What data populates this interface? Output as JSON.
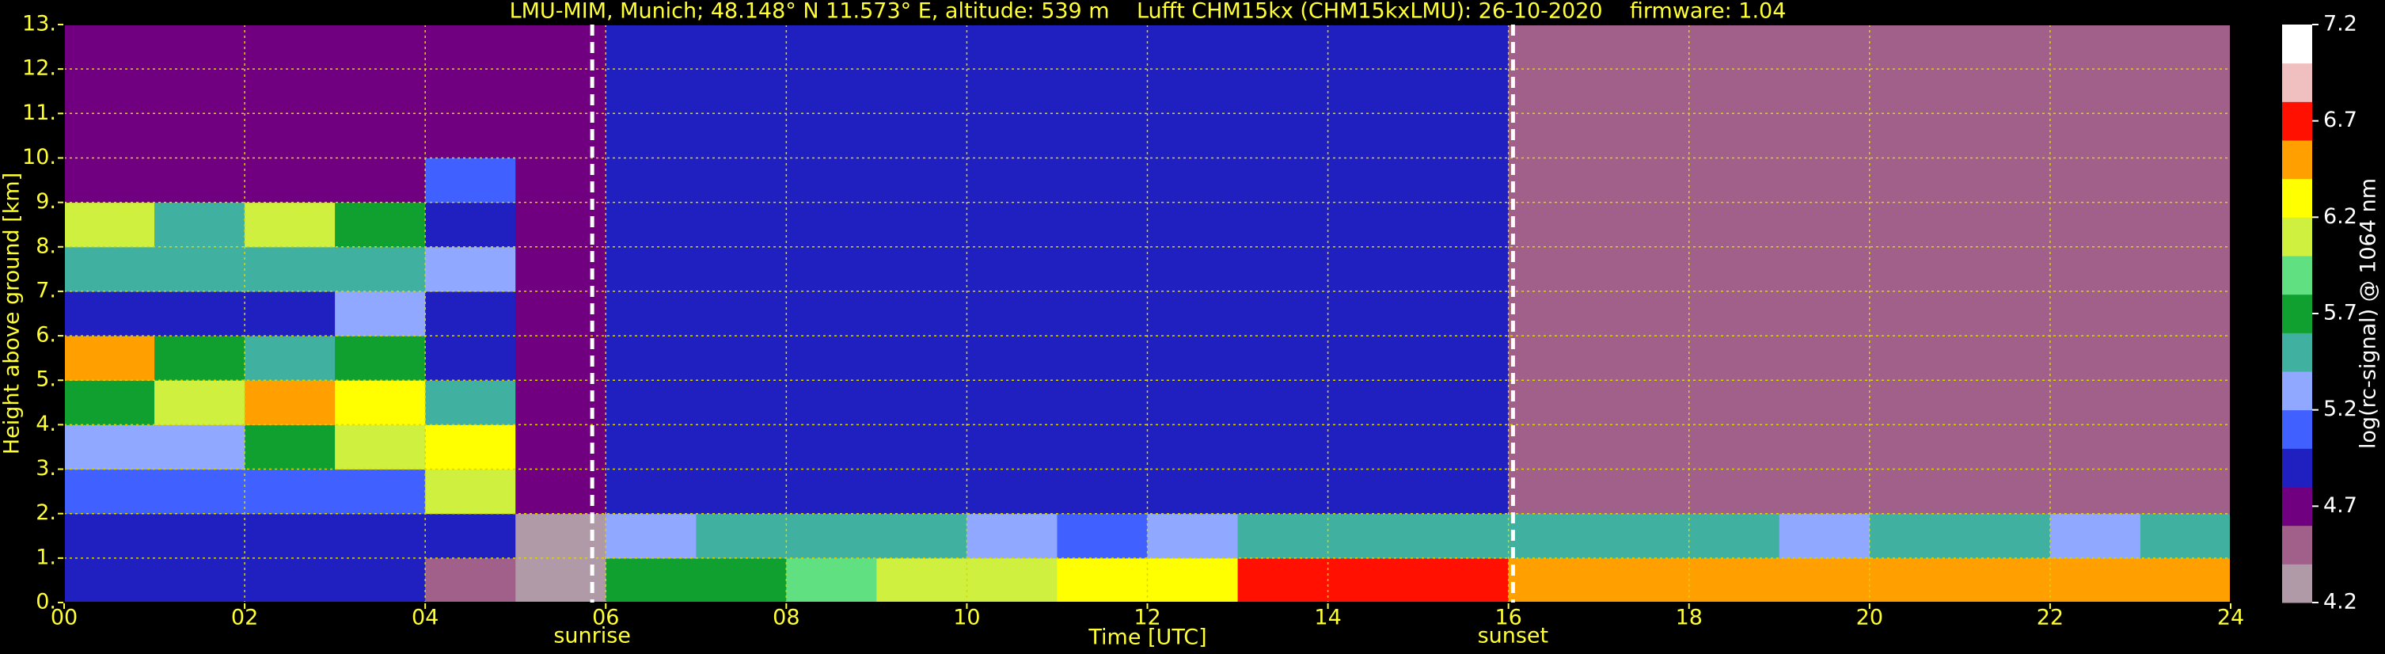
{
  "chart_data": {
    "type": "heatmap",
    "title": "LMU-MIM, Munich; 48.148° N 11.573° E, altitude: 539 m    Lufft CHM15kx (CHM15kxLMU): 26-10-2020    firmware: 1.04",
    "xlabel": "Time [UTC]",
    "ylabel": "Height above ground [km]",
    "colorbar_label": "log(rc-signal) @ 1064 nm",
    "xlim": [
      0,
      24
    ],
    "ylim": [
      0,
      13
    ],
    "xticks": [
      {
        "value": 0,
        "label": "00"
      },
      {
        "value": 2,
        "label": "02"
      },
      {
        "value": 4,
        "label": "04"
      },
      {
        "value": 6,
        "label": "06"
      },
      {
        "value": 8,
        "label": "08"
      },
      10,
      12,
      14,
      16,
      18,
      20,
      22,
      24
    ],
    "yticks": [
      {
        "value": 0,
        "label": "0."
      },
      {
        "value": 1,
        "label": "1."
      },
      {
        "value": 2,
        "label": "2."
      },
      {
        "value": 3,
        "label": "3."
      },
      {
        "value": 4,
        "label": "4."
      },
      {
        "value": 5,
        "label": "5."
      },
      {
        "value": 6,
        "label": "6."
      },
      {
        "value": 7,
        "label": "7."
      },
      {
        "value": 8,
        "label": "8."
      },
      {
        "value": 9,
        "label": "9."
      },
      {
        "value": 10,
        "label": "10."
      },
      {
        "value": 11,
        "label": "11."
      },
      {
        "value": 12,
        "label": "12."
      },
      {
        "value": 13,
        "label": "13."
      }
    ],
    "grid": true,
    "grid_color": "#d8d800",
    "x": [
      0,
      1,
      2,
      3,
      4,
      5,
      6,
      7,
      8,
      9,
      10,
      11,
      12,
      13,
      14,
      15,
      16,
      17,
      18,
      19,
      20,
      21,
      22,
      23
    ],
    "y": [
      0,
      1,
      2,
      3,
      4,
      5,
      6,
      7,
      8,
      9,
      10,
      11,
      12
    ],
    "z": [
      [
        4.9,
        4.9,
        4.9,
        4.9,
        4.5,
        4.3,
        5.8,
        5.8,
        5.9,
        6.0,
        6.0,
        6.2,
        6.3,
        6.7,
        6.7,
        6.7,
        6.6,
        6.6,
        6.6,
        6.6,
        6.6,
        6.6,
        6.6,
        6.6
      ],
      [
        4.9,
        4.9,
        4.9,
        4.9,
        5.0,
        4.3,
        5.3,
        5.4,
        5.5,
        5.5,
        5.2,
        5.1,
        5.2,
        5.5,
        5.5,
        5.6,
        5.4,
        5.4,
        5.4,
        5.3,
        5.4,
        5.4,
        5.3,
        5.4
      ],
      [
        5.1,
        5.1,
        5.1,
        5.1,
        6.0,
        4.8,
        4.9,
        4.9,
        4.9,
        4.9,
        4.9,
        4.9,
        4.9,
        5.0,
        5.0,
        5.0,
        4.6,
        4.6,
        4.6,
        4.6,
        4.6,
        4.6,
        4.6,
        4.6
      ],
      [
        5.2,
        5.3,
        5.8,
        6.0,
        6.3,
        4.8,
        5.0,
        5.0,
        5.0,
        5.0,
        5.0,
        5.0,
        5.0,
        5.0,
        5.0,
        5.0,
        4.5,
        4.5,
        4.5,
        4.5,
        4.5,
        4.5,
        4.5,
        4.5
      ],
      [
        5.7,
        6.0,
        6.6,
        6.2,
        5.5,
        4.8,
        5.0,
        5.0,
        5.0,
        5.0,
        5.0,
        5.0,
        5.0,
        5.0,
        5.0,
        5.0,
        4.5,
        4.5,
        4.5,
        4.5,
        4.5,
        4.5,
        4.5,
        4.5
      ],
      [
        6.5,
        5.7,
        5.6,
        5.8,
        5.0,
        4.8,
        5.0,
        5.0,
        5.0,
        5.0,
        5.0,
        5.0,
        5.0,
        5.0,
        5.0,
        5.0,
        4.5,
        4.5,
        4.5,
        4.5,
        4.5,
        4.5,
        4.5,
        4.5
      ],
      [
        4.9,
        4.9,
        5.0,
        5.2,
        4.9,
        4.8,
        5.0,
        5.0,
        5.0,
        5.0,
        5.0,
        5.0,
        5.0,
        5.0,
        5.0,
        5.0,
        4.5,
        4.5,
        4.5,
        4.5,
        4.5,
        4.5,
        4.5,
        4.5
      ],
      [
        5.5,
        5.5,
        5.4,
        5.5,
        5.3,
        4.8,
        5.0,
        5.0,
        5.0,
        5.0,
        5.0,
        5.0,
        5.0,
        5.0,
        5.0,
        5.0,
        4.5,
        4.5,
        4.5,
        4.5,
        4.5,
        4.5,
        4.5,
        4.5
      ],
      [
        6.1,
        5.6,
        6.0,
        5.8,
        4.9,
        4.8,
        5.0,
        5.0,
        5.0,
        5.0,
        5.0,
        5.0,
        5.0,
        5.0,
        5.0,
        5.0,
        4.5,
        4.5,
        4.5,
        4.5,
        4.5,
        4.5,
        4.5,
        4.5
      ],
      [
        4.8,
        4.8,
        4.8,
        4.8,
        5.1,
        4.8,
        5.0,
        5.0,
        5.0,
        5.0,
        5.0,
        5.0,
        5.0,
        5.0,
        5.0,
        5.0,
        4.5,
        4.5,
        4.5,
        4.5,
        4.5,
        4.5,
        4.5,
        4.5
      ],
      [
        4.8,
        4.8,
        4.8,
        4.8,
        4.8,
        4.8,
        5.0,
        5.0,
        5.0,
        5.0,
        5.0,
        5.0,
        5.0,
        5.0,
        5.0,
        5.0,
        4.5,
        4.5,
        4.5,
        4.5,
        4.5,
        4.5,
        4.5,
        4.5
      ],
      [
        4.8,
        4.8,
        4.8,
        4.8,
        4.8,
        4.8,
        5.0,
        5.0,
        5.0,
        5.0,
        5.0,
        5.0,
        5.0,
        5.0,
        5.0,
        5.0,
        4.5,
        4.5,
        4.5,
        4.5,
        4.5,
        4.5,
        4.5,
        4.5
      ],
      [
        4.8,
        4.8,
        4.8,
        4.8,
        4.8,
        4.8,
        5.0,
        5.0,
        5.0,
        5.0,
        5.0,
        5.0,
        5.0,
        5.0,
        5.0,
        5.0,
        4.5,
        4.5,
        4.5,
        4.5,
        4.5,
        4.5,
        4.5,
        4.5
      ]
    ],
    "zlim": [
      4.2,
      7.2
    ],
    "zticks": [
      4.2,
      4.7,
      5.2,
      5.7,
      6.2,
      6.7,
      7.2
    ],
    "colormap": [
      "#b09aa8",
      "#a0608a",
      "#700080",
      "#2020c0",
      "#4060ff",
      "#90a8ff",
      "#40b0a0",
      "#10a030",
      "#60e080",
      "#d0f040",
      "#ffff00",
      "#ffa000",
      "#ff1000",
      "#f0c0c0",
      "#ffffff"
    ],
    "vlines": [
      {
        "x": 5.85,
        "label": "sunrise"
      },
      {
        "x": 16.05,
        "label": "sunset"
      }
    ]
  }
}
